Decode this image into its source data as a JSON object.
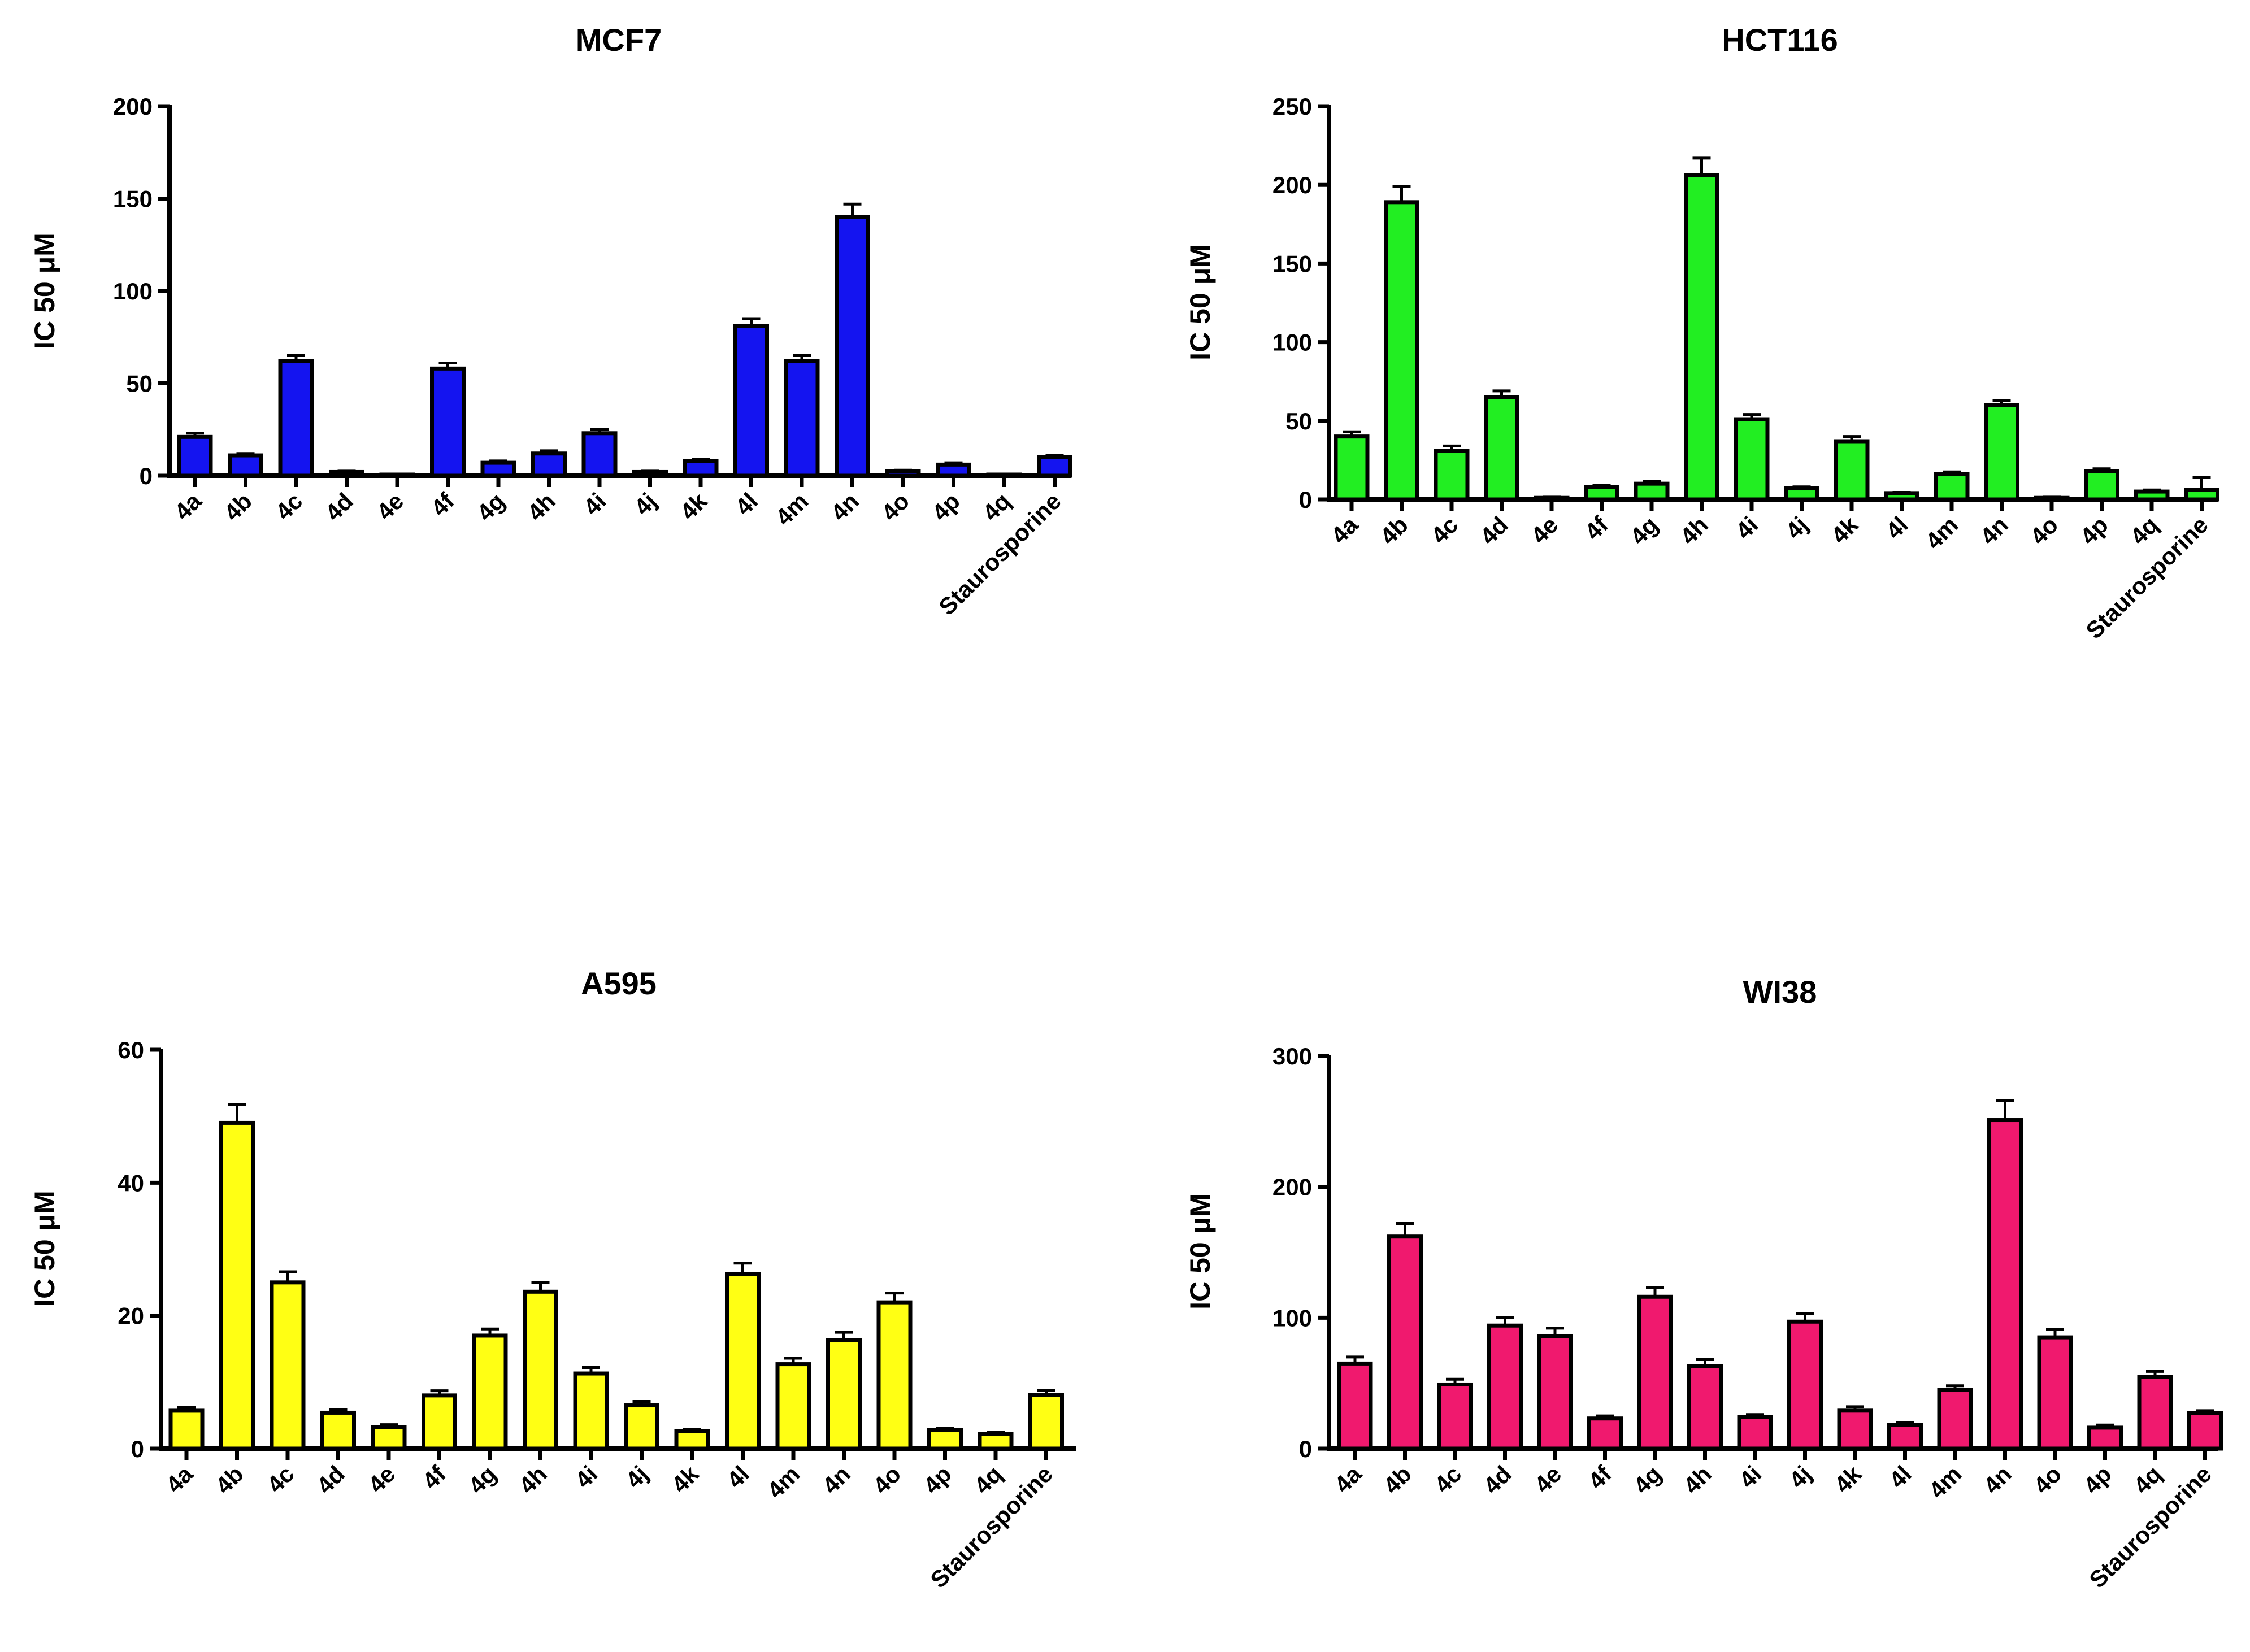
{
  "chart_data": [
    {
      "type": "bar",
      "title": "MCF7",
      "ylabel": "IC 50 μM",
      "xlabel": "",
      "ylim": [
        0,
        200
      ],
      "yticks": [
        0,
        50,
        100,
        150,
        200
      ],
      "color": "#1414f0",
      "categories": [
        "4a",
        "4b",
        "4c",
        "4d",
        "4e",
        "4f",
        "4g",
        "4h",
        "4i",
        "4j",
        "4k",
        "4l",
        "4m",
        "4n",
        "4o",
        "4p",
        "4q",
        "Staurosporine"
      ],
      "values": [
        21,
        11,
        62,
        2,
        0.5,
        58,
        7,
        12,
        23,
        2,
        8,
        81,
        62,
        140,
        2.5,
        6,
        0.5,
        10
      ],
      "errors": [
        2,
        1,
        3,
        0.5,
        0,
        3,
        1,
        1.5,
        2,
        0.5,
        1,
        4,
        3,
        7,
        0.5,
        1,
        0,
        1
      ]
    },
    {
      "type": "bar",
      "title": "HCT116",
      "ylabel": "IC 50 μM",
      "xlabel": "",
      "ylim": [
        0,
        250
      ],
      "yticks": [
        0,
        50,
        100,
        150,
        200,
        250
      ],
      "color": "#22ee22",
      "categories": [
        "4a",
        "4b",
        "4c",
        "4d",
        "4e",
        "4f",
        "4g",
        "4h",
        "4i",
        "4j",
        "4k",
        "4l",
        "4m",
        "4n",
        "4o",
        "4p",
        "4q",
        "Staurosporine"
      ],
      "values": [
        40,
        189,
        31,
        65,
        1,
        8,
        10,
        206,
        51,
        7,
        37,
        4,
        16,
        60,
        1,
        18,
        5,
        6
      ],
      "errors": [
        3,
        10,
        3,
        4,
        0.5,
        1,
        1.5,
        11,
        3,
        1,
        3,
        0.5,
        1.5,
        3,
        0.5,
        1.5,
        1,
        8
      ]
    },
    {
      "type": "bar",
      "title": "A595",
      "ylabel": "IC 50 μM",
      "xlabel": "",
      "ylim": [
        0,
        60
      ],
      "yticks": [
        0,
        20,
        40,
        60
      ],
      "color": "#ffff14",
      "categories": [
        "4a",
        "4b",
        "4c",
        "4d",
        "4e",
        "4f",
        "4g",
        "4h",
        "4i",
        "4j",
        "4k",
        "4l",
        "4m",
        "4n",
        "4o",
        "4p",
        "4q",
        "Staurosporine"
      ],
      "values": [
        5.7,
        49,
        25,
        5.4,
        3.2,
        8,
        17,
        23.6,
        11.3,
        6.5,
        2.6,
        26.3,
        12.7,
        16.3,
        22,
        2.8,
        2.2,
        8.1
      ],
      "errors": [
        0.5,
        2.8,
        1.6,
        0.5,
        0.4,
        0.7,
        1,
        1.4,
        0.9,
        0.6,
        0.3,
        1.6,
        0.9,
        1.2,
        1.4,
        0.3,
        0.3,
        0.7
      ]
    },
    {
      "type": "bar",
      "title": "WI38",
      "ylabel": "IC 50 μM",
      "xlabel": "",
      "ylim": [
        0,
        300
      ],
      "yticks": [
        0,
        100,
        200,
        300
      ],
      "color": "#f0196e",
      "categories": [
        "4a",
        "4b",
        "4c",
        "4d",
        "4e",
        "4f",
        "4g",
        "4h",
        "4i",
        "4j",
        "4k",
        "4l",
        "4m",
        "4n",
        "4o",
        "4p",
        "4q",
        "Staurosporine"
      ],
      "values": [
        65,
        162,
        49,
        94,
        86,
        23,
        116,
        63,
        24,
        97,
        29,
        18,
        45,
        251,
        85,
        16,
        55,
        27
      ],
      "errors": [
        5,
        10,
        4,
        6,
        6,
        2,
        7,
        5,
        2,
        6,
        3,
        2,
        3,
        15,
        6,
        2,
        4,
        2
      ]
    }
  ]
}
